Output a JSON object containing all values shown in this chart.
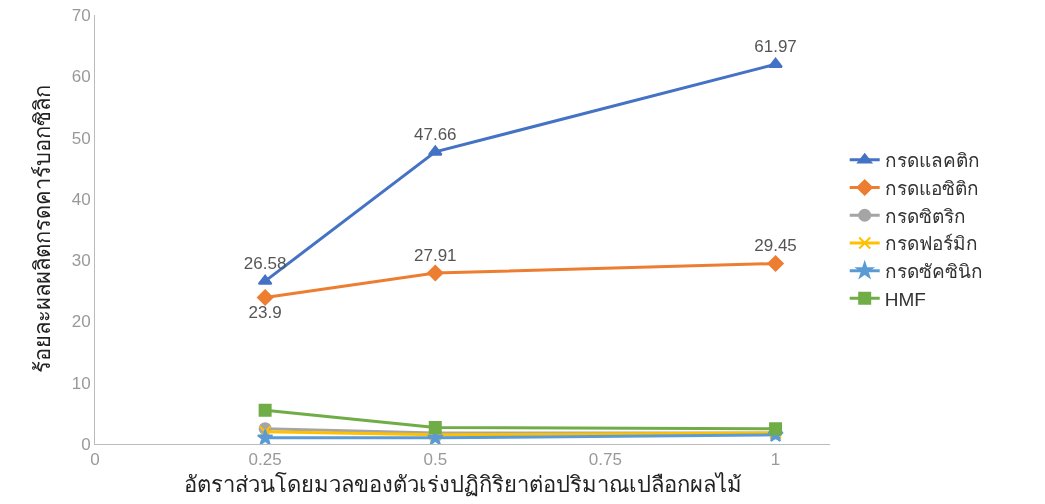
{
  "chart_data": {
    "type": "line",
    "xlabel": "อัตราส่วนโดยมวลของตัวเร่งปฏิกิริยาต่อปริมาณเปลือกผลไม้",
    "ylabel": "ร้อยละผลผลิตกรดคาร์บอกซิลิก",
    "x": [
      0.25,
      0.5,
      1
    ],
    "xlim": [
      0,
      1.08
    ],
    "xticks": [
      0,
      0.25,
      0.5,
      0.75,
      1
    ],
    "ylim": [
      0,
      70
    ],
    "yticks": [
      0,
      10,
      20,
      30,
      40,
      50,
      60,
      70
    ],
    "legend": "right",
    "series": [
      {
        "name": "กรดแลคติก",
        "color": "#4472c4",
        "marker": "triangle",
        "values": [
          26.58,
          47.66,
          61.97
        ],
        "value_labels": [
          "26.58",
          "47.66",
          "61.97"
        ]
      },
      {
        "name": "กรดแอซิติก",
        "color": "#ed7d31",
        "marker": "diamond",
        "values": [
          23.9,
          27.91,
          29.45
        ],
        "value_labels": [
          "23.9",
          "27.91",
          "29.45"
        ]
      },
      {
        "name": "กรดซิตริก",
        "color": "#a5a5a5",
        "marker": "circle",
        "values": [
          2.5,
          1.8,
          1.8
        ]
      },
      {
        "name": "กรดฟอร์มิก",
        "color": "#ffc000",
        "marker": "cross",
        "values": [
          2,
          1.5,
          1.8
        ]
      },
      {
        "name": "กรดซัคซินิก",
        "color": "#5b9bd5",
        "marker": "star",
        "values": [
          1,
          1,
          1.5
        ]
      },
      {
        "name": "HMF",
        "color": "#70ad47",
        "marker": "square",
        "values": [
          5.5,
          2.7,
          2.5
        ]
      }
    ]
  }
}
